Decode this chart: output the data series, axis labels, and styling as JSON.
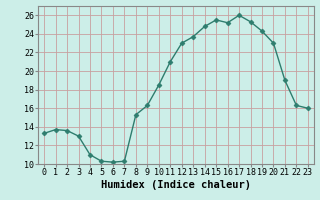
{
  "x": [
    0,
    1,
    2,
    3,
    4,
    5,
    6,
    7,
    8,
    9,
    10,
    11,
    12,
    13,
    14,
    15,
    16,
    17,
    18,
    19,
    20,
    21,
    22,
    23
  ],
  "y": [
    13.3,
    13.7,
    13.6,
    13.0,
    11.0,
    10.3,
    10.2,
    10.3,
    15.3,
    16.3,
    18.5,
    21.0,
    23.0,
    23.7,
    24.8,
    25.5,
    25.2,
    26.0,
    25.3,
    24.3,
    23.0,
    19.0,
    16.3,
    16.0
  ],
  "line_color": "#2e7d6e",
  "marker": "D",
  "marker_size": 2.5,
  "bg_color": "#cceee8",
  "grid_major_color": "#c8a0a0",
  "grid_minor_color": "#ddc0c0",
  "xlabel": "Humidex (Indice chaleur)",
  "ylim": [
    10,
    27
  ],
  "xlim": [
    -0.5,
    23.5
  ],
  "yticks": [
    10,
    12,
    14,
    16,
    18,
    20,
    22,
    24,
    26
  ],
  "xticks": [
    0,
    1,
    2,
    3,
    4,
    5,
    6,
    7,
    8,
    9,
    10,
    11,
    12,
    13,
    14,
    15,
    16,
    17,
    18,
    19,
    20,
    21,
    22,
    23
  ],
  "tick_fontsize": 6,
  "xlabel_fontsize": 7.5,
  "xlabel_fontweight": "bold",
  "spine_color": "#888888"
}
